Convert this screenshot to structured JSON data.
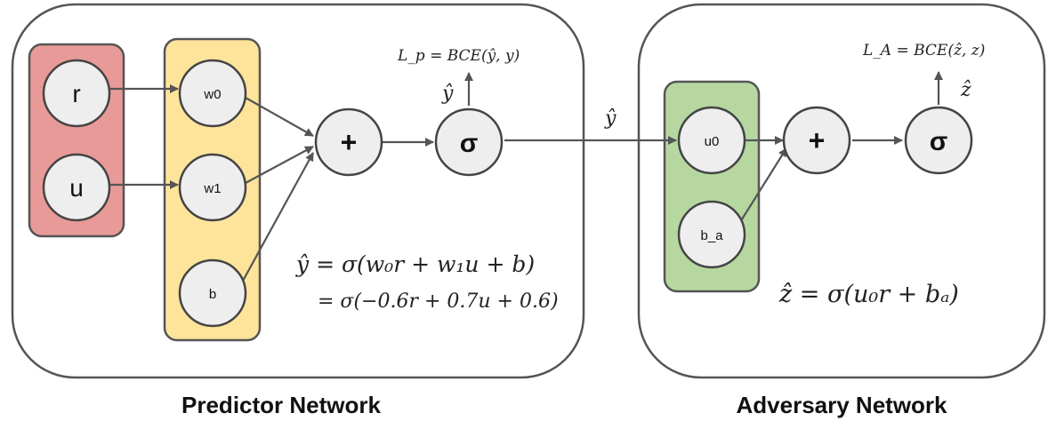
{
  "colors": {
    "frame": "#555555",
    "node_fill": "#eeeeee",
    "node_stroke": "#444444",
    "input_group_fill": "#e89a98",
    "input_group_stroke": "#555555",
    "weight_group_fill": "#fde49a",
    "weight_group_stroke": "#555555",
    "adv_weight_group_fill": "#b7d7a0",
    "adv_weight_group_stroke": "#555555",
    "arrow": "#555555"
  },
  "predictor": {
    "caption": "Predictor Network",
    "inputs": {
      "r": "r",
      "u": "u"
    },
    "weights": {
      "w0": "w0",
      "w1": "w1",
      "b": "b"
    },
    "sum_symbol": "+",
    "sigma_symbol": "σ",
    "output_symbol": "ŷ",
    "loss": "L_p = BCE(ŷ, y)",
    "equation_line1": "ŷ = σ(w₀r + w₁u + b)",
    "equation_line2": "= σ(−0.6r + 0.7u + 0.6)"
  },
  "link_label": "ŷ",
  "adversary": {
    "caption": "Adversary Network",
    "weights": {
      "u0": "u0",
      "b_a": "b_a"
    },
    "sum_symbol": "+",
    "sigma_symbol": "σ",
    "output_symbol": "ẑ",
    "loss": "L_A = BCE(ẑ, z)",
    "equation": "ẑ = σ(u₀r + bₐ)"
  }
}
